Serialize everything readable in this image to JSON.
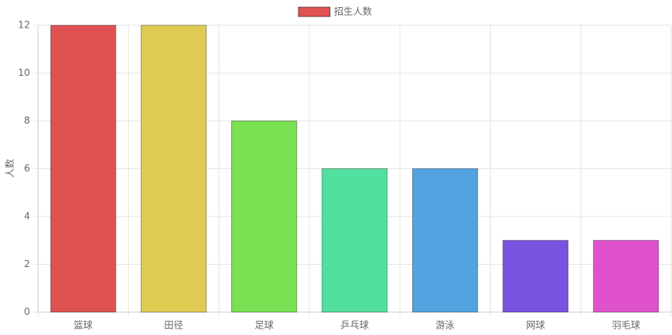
{
  "chart_data": {
    "type": "bar",
    "categories": [
      "篮球",
      "田径",
      "足球",
      "乒乓球",
      "游泳",
      "网球",
      "羽毛球"
    ],
    "series": [
      {
        "name": "招生人数",
        "values": [
          12,
          12,
          8,
          6,
          6,
          3,
          3
        ],
        "colors": [
          "#e05252",
          "#dfcb52",
          "#79e052",
          "#52e09e",
          "#52a3e0",
          "#7a52e0",
          "#e052cc"
        ]
      }
    ],
    "y_label": "人数",
    "ylim": [
      0,
      12
    ],
    "yticks": [
      0,
      2,
      4,
      6,
      8,
      10,
      12
    ],
    "grid": true,
    "legend": "top"
  }
}
